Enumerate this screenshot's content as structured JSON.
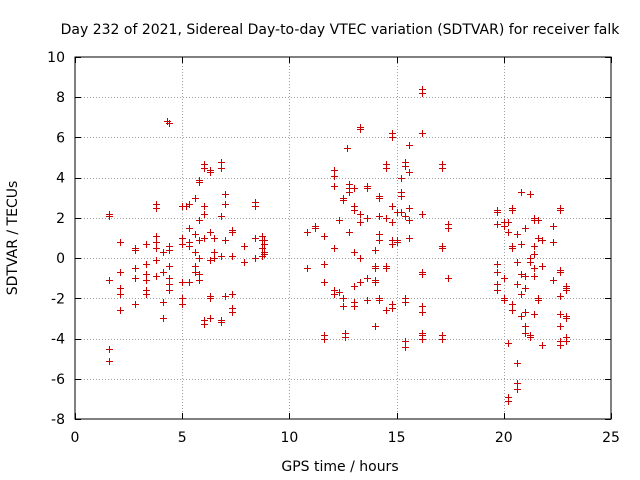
{
  "chart_data": {
    "type": "scatter",
    "title": "Day 232 of 2021, Sidereal Day-to-day VTEC variation (SDTVAR) for receiver falk",
    "xlabel": "GPS time / hours",
    "ylabel": "SDTVAR / TECUs",
    "xlim": [
      0,
      25
    ],
    "ylim": [
      -8,
      10
    ],
    "xticks": [
      0,
      5,
      10,
      15,
      20,
      25
    ],
    "yticks": [
      -8,
      -6,
      -4,
      -2,
      0,
      2,
      4,
      6,
      8,
      10
    ],
    "grid": true,
    "marker": "+",
    "color": "#cc0000",
    "series": [
      {
        "name": "SDTVAR",
        "points": [
          [
            1.6,
            2.2
          ],
          [
            1.6,
            2.1
          ],
          [
            1.6,
            -1.1
          ],
          [
            1.6,
            -4.5
          ],
          [
            1.6,
            -5.1
          ],
          [
            2.1,
            0.8
          ],
          [
            2.1,
            -0.7
          ],
          [
            2.1,
            -1.5
          ],
          [
            2.1,
            -1.8
          ],
          [
            2.1,
            -2.6
          ],
          [
            2.8,
            0.5
          ],
          [
            2.8,
            0.4
          ],
          [
            2.8,
            -0.5
          ],
          [
            2.8,
            -1.0
          ],
          [
            2.8,
            -2.3
          ],
          [
            3.3,
            0.7
          ],
          [
            3.3,
            -0.3
          ],
          [
            3.3,
            -0.8
          ],
          [
            3.3,
            -1.1
          ],
          [
            3.3,
            -1.6
          ],
          [
            3.3,
            -1.8
          ],
          [
            3.8,
            2.7
          ],
          [
            3.8,
            2.5
          ],
          [
            3.8,
            1.1
          ],
          [
            3.8,
            0.8
          ],
          [
            3.8,
            0.5
          ],
          [
            3.8,
            -0.1
          ],
          [
            3.8,
            -0.9
          ],
          [
            4.1,
            -0.7
          ],
          [
            4.1,
            -2.2
          ],
          [
            4.1,
            -3.0
          ],
          [
            4.1,
            0.3
          ],
          [
            4.3,
            6.8
          ],
          [
            4.4,
            6.7
          ],
          [
            4.4,
            0.6
          ],
          [
            4.4,
            0.4
          ],
          [
            4.4,
            -0.4
          ],
          [
            4.4,
            -1.0
          ],
          [
            4.4,
            -1.3
          ],
          [
            4.4,
            -1.6
          ],
          [
            5.0,
            2.6
          ],
          [
            5.0,
            1.0
          ],
          [
            5.0,
            0.7
          ],
          [
            5.0,
            -1.2
          ],
          [
            5.0,
            -2.0
          ],
          [
            5.0,
            -2.3
          ],
          [
            5.3,
            2.7
          ],
          [
            5.3,
            1.5
          ],
          [
            5.3,
            0.8
          ],
          [
            5.3,
            -1.2
          ],
          [
            5.3,
            0.6
          ],
          [
            5.2,
            2.6
          ],
          [
            5.6,
            3.0
          ],
          [
            5.6,
            1.2
          ],
          [
            5.6,
            0.3
          ],
          [
            5.6,
            -0.4
          ],
          [
            5.6,
            -0.7
          ],
          [
            5.8,
            3.8
          ],
          [
            5.8,
            3.9
          ],
          [
            5.8,
            1.9
          ],
          [
            5.8,
            0.9
          ],
          [
            5.8,
            0.0
          ],
          [
            5.8,
            -0.8
          ],
          [
            5.8,
            -1.1
          ],
          [
            6.0,
            4.7
          ],
          [
            6.0,
            4.5
          ],
          [
            6.0,
            2.6
          ],
          [
            6.0,
            2.2
          ],
          [
            6.0,
            1.0
          ],
          [
            6.0,
            -3.3
          ],
          [
            6.0,
            -3.1
          ],
          [
            6.3,
            4.4
          ],
          [
            6.3,
            4.3
          ],
          [
            6.3,
            1.3
          ],
          [
            6.3,
            -0.1
          ],
          [
            6.3,
            -1.9
          ],
          [
            6.3,
            -2.0
          ],
          [
            6.3,
            -3.0
          ],
          [
            6.5,
            0.3
          ],
          [
            6.5,
            0.0
          ],
          [
            6.5,
            1.0
          ],
          [
            6.8,
            4.8
          ],
          [
            6.8,
            4.5
          ],
          [
            6.8,
            2.1
          ],
          [
            6.8,
            0.1
          ],
          [
            6.8,
            -3.1
          ],
          [
            6.8,
            -3.2
          ],
          [
            7.0,
            3.2
          ],
          [
            7.0,
            2.7
          ],
          [
            7.0,
            0.9
          ],
          [
            7.0,
            -1.9
          ],
          [
            7.3,
            1.4
          ],
          [
            7.3,
            1.3
          ],
          [
            7.3,
            0.1
          ],
          [
            7.3,
            -1.8
          ],
          [
            7.3,
            -2.5
          ],
          [
            7.3,
            -2.7
          ],
          [
            7.9,
            0.6
          ],
          [
            7.9,
            -0.2
          ],
          [
            8.4,
            2.8
          ],
          [
            8.4,
            2.6
          ],
          [
            8.4,
            1.0
          ],
          [
            8.4,
            0.0
          ],
          [
            8.7,
            1.1
          ],
          [
            8.7,
            0.9
          ],
          [
            8.7,
            0.5
          ],
          [
            8.7,
            0.1
          ],
          [
            8.8,
            0.7
          ],
          [
            8.8,
            0.3
          ],
          [
            8.8,
            0.2
          ],
          [
            8.8,
            0.9
          ],
          [
            10.8,
            1.3
          ],
          [
            10.8,
            -0.5
          ],
          [
            11.2,
            1.6
          ],
          [
            11.2,
            1.5
          ],
          [
            11.6,
            1.1
          ],
          [
            11.6,
            -0.3
          ],
          [
            11.6,
            -1.2
          ],
          [
            11.6,
            -3.8
          ],
          [
            11.6,
            -4.0
          ],
          [
            12.1,
            4.4
          ],
          [
            12.1,
            4.1
          ],
          [
            12.1,
            3.6
          ],
          [
            12.1,
            0.5
          ],
          [
            12.1,
            -1.6
          ],
          [
            12.1,
            -1.8
          ],
          [
            12.3,
            1.9
          ],
          [
            12.3,
            -1.7
          ],
          [
            12.5,
            3.0
          ],
          [
            12.5,
            2.9
          ],
          [
            12.5,
            -2.0
          ],
          [
            12.5,
            -2.4
          ],
          [
            12.6,
            -3.7
          ],
          [
            12.6,
            -3.9
          ],
          [
            12.7,
            5.5
          ],
          [
            12.8,
            3.7
          ],
          [
            12.8,
            3.5
          ],
          [
            12.8,
            3.3
          ],
          [
            12.8,
            1.3
          ],
          [
            13.0,
            3.5
          ],
          [
            13.0,
            2.6
          ],
          [
            13.0,
            2.4
          ],
          [
            13.0,
            0.3
          ],
          [
            13.0,
            -1.4
          ],
          [
            13.0,
            -2.2
          ],
          [
            13.0,
            -2.4
          ],
          [
            13.3,
            6.5
          ],
          [
            13.3,
            6.4
          ],
          [
            13.3,
            2.2
          ],
          [
            13.3,
            1.8
          ],
          [
            13.3,
            0.0
          ],
          [
            13.3,
            -1.2
          ],
          [
            13.6,
            3.6
          ],
          [
            13.6,
            3.5
          ],
          [
            13.6,
            2.0
          ],
          [
            13.6,
            -1.0
          ],
          [
            13.6,
            -2.1
          ],
          [
            14.0,
            0.4
          ],
          [
            14.0,
            -0.4
          ],
          [
            14.0,
            -0.5
          ],
          [
            14.0,
            -1.1
          ],
          [
            14.0,
            -1.2
          ],
          [
            14.0,
            -3.4
          ],
          [
            14.2,
            3.1
          ],
          [
            14.2,
            3.0
          ],
          [
            14.2,
            2.1
          ],
          [
            14.2,
            1.2
          ],
          [
            14.2,
            0.9
          ],
          [
            14.2,
            -2.0
          ],
          [
            14.2,
            -2.1
          ],
          [
            14.5,
            4.7
          ],
          [
            14.5,
            4.5
          ],
          [
            14.5,
            2.0
          ],
          [
            14.5,
            -0.4
          ],
          [
            14.5,
            -0.5
          ],
          [
            14.5,
            -2.6
          ],
          [
            14.8,
            6.2
          ],
          [
            14.8,
            6.0
          ],
          [
            14.8,
            2.6
          ],
          [
            14.8,
            1.8
          ],
          [
            14.8,
            0.9
          ],
          [
            14.8,
            0.7
          ],
          [
            14.8,
            -2.3
          ],
          [
            14.8,
            -2.5
          ],
          [
            15.0,
            2.3
          ],
          [
            15.0,
            0.9
          ],
          [
            15.0,
            0.8
          ],
          [
            15.2,
            4.0
          ],
          [
            15.2,
            3.3
          ],
          [
            15.2,
            3.1
          ],
          [
            15.2,
            2.3
          ],
          [
            15.4,
            4.8
          ],
          [
            15.4,
            4.6
          ],
          [
            15.4,
            2.1
          ],
          [
            15.4,
            -2.0
          ],
          [
            15.4,
            -2.2
          ],
          [
            15.4,
            -4.1
          ],
          [
            15.4,
            -4.4
          ],
          [
            15.6,
            5.6
          ],
          [
            15.6,
            4.3
          ],
          [
            15.6,
            2.5
          ],
          [
            15.6,
            1.9
          ],
          [
            15.6,
            1.0
          ],
          [
            16.2,
            8.4
          ],
          [
            16.2,
            8.2
          ],
          [
            16.2,
            6.2
          ],
          [
            16.2,
            2.2
          ],
          [
            16.2,
            -0.7
          ],
          [
            16.2,
            -0.8
          ],
          [
            16.2,
            -2.4
          ],
          [
            16.2,
            -2.7
          ],
          [
            16.2,
            -3.7
          ],
          [
            16.2,
            -3.8
          ],
          [
            16.2,
            -4.0
          ],
          [
            17.1,
            4.7
          ],
          [
            17.1,
            4.5
          ],
          [
            17.1,
            0.6
          ],
          [
            17.1,
            0.5
          ],
          [
            17.1,
            -3.8
          ],
          [
            17.1,
            -4.0
          ],
          [
            17.4,
            1.7
          ],
          [
            17.4,
            1.5
          ],
          [
            17.4,
            -1.0
          ],
          [
            19.7,
            2.4
          ],
          [
            19.7,
            2.3
          ],
          [
            19.7,
            1.7
          ],
          [
            19.7,
            -0.3
          ],
          [
            19.7,
            -0.7
          ],
          [
            19.7,
            -1.3
          ],
          [
            19.7,
            -1.6
          ],
          [
            20.0,
            1.8
          ],
          [
            20.0,
            1.6
          ],
          [
            20.0,
            -1.0
          ],
          [
            20.0,
            -2.0
          ],
          [
            20.0,
            -2.1
          ],
          [
            20.2,
            1.8
          ],
          [
            20.2,
            1.3
          ],
          [
            20.2,
            -4.2
          ],
          [
            20.2,
            -6.9
          ],
          [
            20.2,
            -7.1
          ],
          [
            20.4,
            2.5
          ],
          [
            20.4,
            2.4
          ],
          [
            20.4,
            0.6
          ],
          [
            20.4,
            0.5
          ],
          [
            20.4,
            -2.3
          ],
          [
            20.4,
            -2.6
          ],
          [
            20.6,
            1.2
          ],
          [
            20.6,
            -0.2
          ],
          [
            20.6,
            -1.3
          ],
          [
            20.6,
            -5.2
          ],
          [
            20.6,
            -6.2
          ],
          [
            20.6,
            -6.5
          ],
          [
            20.8,
            3.3
          ],
          [
            20.8,
            0.7
          ],
          [
            20.8,
            -0.8
          ],
          [
            20.8,
            -1.8
          ],
          [
            20.8,
            -2.9
          ],
          [
            21.0,
            1.5
          ],
          [
            21.0,
            -0.9
          ],
          [
            21.0,
            -1.5
          ],
          [
            21.0,
            -2.7
          ],
          [
            21.0,
            -3.4
          ],
          [
            21.0,
            -3.7
          ],
          [
            21.2,
            3.2
          ],
          [
            21.2,
            0.0
          ],
          [
            21.2,
            -0.2
          ],
          [
            21.2,
            -3.8
          ],
          [
            21.2,
            -3.9
          ],
          [
            21.4,
            2.0
          ],
          [
            21.4,
            1.9
          ],
          [
            21.4,
            0.6
          ],
          [
            21.4,
            0.2
          ],
          [
            21.4,
            -0.5
          ],
          [
            21.4,
            -0.9
          ],
          [
            21.4,
            -2.8
          ],
          [
            21.6,
            1.9
          ],
          [
            21.6,
            1.0
          ],
          [
            21.6,
            -2.0
          ],
          [
            21.6,
            -2.1
          ],
          [
            21.8,
            0.9
          ],
          [
            21.8,
            -0.4
          ],
          [
            21.8,
            -4.3
          ],
          [
            22.3,
            1.6
          ],
          [
            22.3,
            0.8
          ],
          [
            22.3,
            -1.1
          ],
          [
            22.6,
            2.5
          ],
          [
            22.6,
            2.4
          ],
          [
            22.6,
            -0.6
          ],
          [
            22.6,
            -0.7
          ],
          [
            22.6,
            -1.9
          ],
          [
            22.6,
            -2.8
          ],
          [
            22.6,
            -3.4
          ],
          [
            22.6,
            -4.1
          ],
          [
            22.6,
            -4.3
          ],
          [
            22.9,
            -1.4
          ],
          [
            22.9,
            -1.5
          ],
          [
            22.9,
            -1.6
          ],
          [
            22.9,
            -2.9
          ],
          [
            22.9,
            -3.0
          ],
          [
            22.9,
            -3.9
          ],
          [
            22.9,
            -4.1
          ]
        ]
      }
    ]
  }
}
